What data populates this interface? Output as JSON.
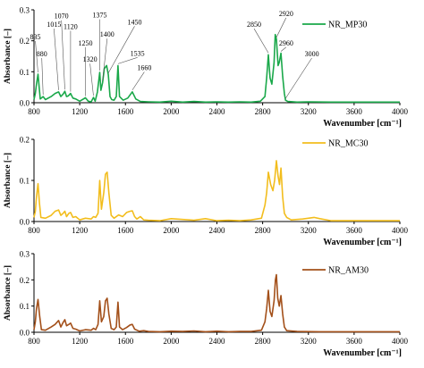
{
  "chart_data": [
    {
      "type": "line",
      "series": [
        {
          "name": "NR_MP30",
          "color": "#1aa84a",
          "x": [
            800,
            812,
            822,
            835,
            845,
            855,
            880,
            900,
            950,
            985,
            1015,
            1035,
            1055,
            1070,
            1085,
            1100,
            1120,
            1140,
            1165,
            1200,
            1250,
            1275,
            1300,
            1320,
            1335,
            1355,
            1375,
            1385,
            1400,
            1415,
            1435,
            1450,
            1465,
            1480,
            1500,
            1520,
            1535,
            1548,
            1580,
            1620,
            1660,
            1690,
            1730,
            1800,
            1900,
            2000,
            2100,
            2200,
            2300,
            2400,
            2500,
            2600,
            2700,
            2780,
            2820,
            2835,
            2850,
            2865,
            2880,
            2900,
            2910,
            2920,
            2935,
            2945,
            2960,
            2975,
            2990,
            3000,
            3020,
            3100,
            3200,
            3400,
            3600,
            3800,
            4000
          ],
          "y": [
            0.01,
            0.03,
            0.06,
            0.092,
            0.05,
            0.012,
            0.02,
            0.01,
            0.02,
            0.03,
            0.035,
            0.02,
            0.028,
            0.037,
            0.02,
            0.022,
            0.03,
            0.015,
            0.012,
            0.005,
            0.016,
            0.005,
            0.003,
            0.017,
            0.005,
            0.035,
            0.098,
            0.04,
            0.065,
            0.11,
            0.12,
            0.09,
            0.02,
            0.01,
            0.008,
            0.02,
            0.12,
            0.02,
            0.008,
            0.015,
            0.035,
            0.012,
            0.004,
            0.003,
            0.002,
            0.005,
            0.002,
            0.004,
            0.002,
            0.003,
            0.002,
            0.003,
            0.002,
            0.005,
            0.02,
            0.08,
            0.155,
            0.08,
            0.06,
            0.13,
            0.22,
            0.205,
            0.12,
            0.13,
            0.16,
            0.085,
            0.03,
            0.008,
            0.004,
            0.002,
            0.003,
            0.002,
            0.002,
            0.002,
            0.002
          ]
        }
      ],
      "annotations": [
        {
          "text": "835",
          "x": 835,
          "label_x": 812,
          "label_y": 0.205
        },
        {
          "text": "880",
          "x": 880,
          "label_x": 868,
          "label_y": 0.15
        },
        {
          "text": "1015",
          "x": 1015,
          "label_x": 975,
          "label_y": 0.245
        },
        {
          "text": "1070",
          "x": 1070,
          "label_x": 1040,
          "label_y": 0.272
        },
        {
          "text": "1120",
          "x": 1120,
          "label_x": 1120,
          "label_y": 0.238
        },
        {
          "text": "1250",
          "x": 1250,
          "label_x": 1250,
          "label_y": 0.185
        },
        {
          "text": "1320",
          "x": 1320,
          "label_x": 1290,
          "label_y": 0.132
        },
        {
          "text": "1375",
          "x": 1375,
          "label_x": 1375,
          "label_y": 0.275
        },
        {
          "text": "1400",
          "x": 1400,
          "label_x": 1440,
          "label_y": 0.213
        },
        {
          "text": "1450",
          "x": 1450,
          "label_x": 1680,
          "label_y": 0.253
        },
        {
          "text": "1535",
          "x": 1535,
          "label_x": 1705,
          "label_y": 0.152
        },
        {
          "text": "1660",
          "x": 1660,
          "label_x": 1765,
          "label_y": 0.105
        },
        {
          "text": "2850",
          "x": 2850,
          "label_x": 2725,
          "label_y": 0.245
        },
        {
          "text": "2920",
          "x": 2920,
          "label_x": 3005,
          "label_y": 0.28
        },
        {
          "text": "2960",
          "x": 2960,
          "label_x": 3005,
          "label_y": 0.185
        },
        {
          "text": "3000",
          "x": 3000,
          "label_x": 3230,
          "label_y": 0.15
        }
      ],
      "xlabel": "Wavenumber [cm⁻¹]",
      "ylabel": "Absorbance [–]",
      "xlim": [
        800,
        4000
      ],
      "ylim": [
        0,
        0.3
      ],
      "xticks": [
        "800",
        "1200",
        "1600",
        "2000",
        "2400",
        "2800",
        "3200",
        "3600",
        "4000"
      ],
      "yticks": [
        "0.0",
        "0.1",
        "0.2",
        "0.3"
      ],
      "legend": "top-right"
    },
    {
      "type": "line",
      "series": [
        {
          "name": "NR_MC30",
          "color": "#f2bd1d",
          "x": [
            800,
            812,
            822,
            835,
            848,
            860,
            900,
            950,
            985,
            1015,
            1035,
            1055,
            1070,
            1085,
            1105,
            1120,
            1140,
            1165,
            1200,
            1250,
            1300,
            1320,
            1340,
            1360,
            1375,
            1390,
            1410,
            1425,
            1440,
            1455,
            1475,
            1500,
            1540,
            1575,
            1610,
            1640,
            1660,
            1680,
            1700,
            1730,
            1760,
            1800,
            1900,
            2000,
            2100,
            2200,
            2300,
            2400,
            2500,
            2600,
            2700,
            2790,
            2820,
            2835,
            2850,
            2870,
            2890,
            2905,
            2920,
            2935,
            2948,
            2960,
            2975,
            2990,
            3010,
            3050,
            3150,
            3250,
            3300,
            3400,
            3600,
            3800,
            4000
          ],
          "y": [
            0.01,
            0.025,
            0.06,
            0.092,
            0.045,
            0.01,
            0.008,
            0.015,
            0.025,
            0.028,
            0.015,
            0.02,
            0.025,
            0.012,
            0.02,
            0.022,
            0.01,
            0.012,
            0.004,
            0.008,
            0.006,
            0.012,
            0.01,
            0.02,
            0.1,
            0.03,
            0.07,
            0.115,
            0.12,
            0.07,
            0.015,
            0.008,
            0.016,
            0.012,
            0.022,
            0.025,
            0.026,
            0.012,
            0.006,
            0.012,
            0.004,
            0.003,
            0.002,
            0.007,
            0.005,
            0.003,
            0.007,
            0.002,
            0.003,
            0.002,
            0.004,
            0.008,
            0.04,
            0.07,
            0.12,
            0.09,
            0.075,
            0.1,
            0.148,
            0.11,
            0.09,
            0.13,
            0.06,
            0.02,
            0.01,
            0.004,
            0.006,
            0.01,
            0.007,
            0.002,
            0.002,
            0.002,
            0.002
          ]
        }
      ],
      "xlabel": "Wavenumber [cm⁻¹]",
      "ylabel": "Absorbance [–]",
      "xlim": [
        800,
        4000
      ],
      "ylim": [
        0,
        0.2
      ],
      "xticks": [
        "800",
        "1200",
        "1600",
        "2000",
        "2400",
        "2800",
        "3200",
        "3600",
        "4000"
      ],
      "yticks": [
        "0.0",
        "0.1",
        "0.2"
      ],
      "legend": "top-right"
    },
    {
      "type": "line",
      "series": [
        {
          "name": "NR_AM30",
          "color": "#a3501a",
          "x": [
            800,
            812,
            822,
            835,
            850,
            865,
            900,
            950,
            985,
            1015,
            1035,
            1055,
            1070,
            1085,
            1105,
            1120,
            1140,
            1165,
            1200,
            1250,
            1300,
            1320,
            1340,
            1360,
            1375,
            1390,
            1410,
            1425,
            1440,
            1455,
            1475,
            1500,
            1520,
            1535,
            1548,
            1575,
            1610,
            1640,
            1660,
            1680,
            1720,
            1760,
            1800,
            1900,
            2000,
            2100,
            2200,
            2300,
            2400,
            2500,
            2600,
            2700,
            2790,
            2820,
            2835,
            2850,
            2865,
            2880,
            2900,
            2912,
            2920,
            2932,
            2945,
            2960,
            2975,
            2990,
            3010,
            3100,
            3300,
            3500,
            3700,
            3900,
            4000
          ],
          "y": [
            0.01,
            0.04,
            0.09,
            0.125,
            0.06,
            0.01,
            0.008,
            0.02,
            0.03,
            0.045,
            0.02,
            0.038,
            0.048,
            0.025,
            0.03,
            0.035,
            0.015,
            0.012,
            0.005,
            0.01,
            0.008,
            0.015,
            0.01,
            0.03,
            0.12,
            0.04,
            0.06,
            0.12,
            0.13,
            0.07,
            0.015,
            0.01,
            0.02,
            0.115,
            0.02,
            0.01,
            0.018,
            0.028,
            0.03,
            0.012,
            0.004,
            0.006,
            0.003,
            0.002,
            0.004,
            0.003,
            0.005,
            0.002,
            0.004,
            0.002,
            0.003,
            0.003,
            0.008,
            0.04,
            0.09,
            0.16,
            0.08,
            0.06,
            0.12,
            0.2,
            0.22,
            0.13,
            0.1,
            0.14,
            0.07,
            0.02,
            0.006,
            0.003,
            0.002,
            0.002,
            0.002,
            0.002,
            0.002
          ]
        }
      ],
      "xlabel": "Wavenumber [cm⁻¹]",
      "ylabel": "Absorbance [–]",
      "xlim": [
        800,
        4000
      ],
      "ylim": [
        0,
        0.3
      ],
      "xticks": [
        "800",
        "1200",
        "1600",
        "2000",
        "2400",
        "2800",
        "3200",
        "3600",
        "4000"
      ],
      "yticks": [
        "0.0",
        "0.1",
        "0.2",
        "0.3"
      ],
      "legend": "top-right"
    }
  ]
}
